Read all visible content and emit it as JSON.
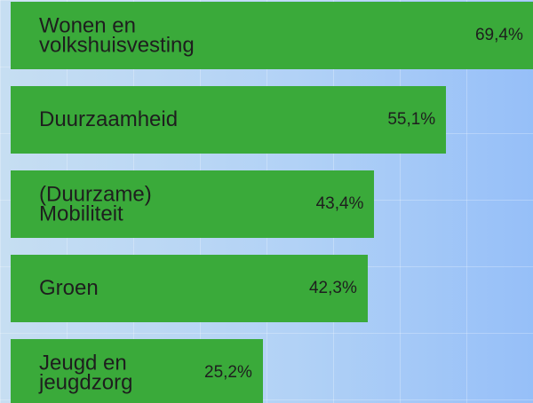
{
  "chart_data": {
    "type": "hbar",
    "categories": [
      "Wonen en volkshuisvesting",
      "Duurzaamheid",
      "(Duurzame) Mobiliteit",
      "Groen",
      "Jeugd en jeugdzorg"
    ],
    "values": [
      69.4,
      55.1,
      43.4,
      42.3,
      25.2
    ],
    "value_labels": [
      "69,4%",
      "55,1%",
      "43,4%",
      "42,3%",
      "25,2%"
    ],
    "color": "#3aaa3a"
  }
}
